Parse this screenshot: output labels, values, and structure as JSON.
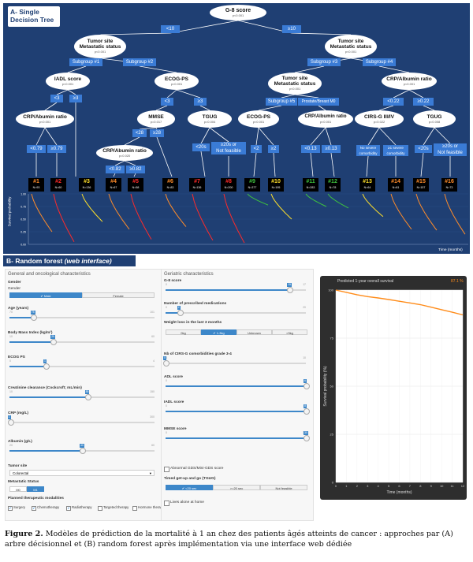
{
  "panelA": {
    "title": [
      "A- Single",
      "Decision Tree"
    ],
    "pvalue": "p<0.001",
    "nodes": {
      "root": "G-8 score",
      "tumor_l": [
        "Tumor site",
        "Metastatic status"
      ],
      "tumor_r": [
        "Tumor site",
        "Metastatic status"
      ],
      "iadl": "IADL score",
      "ecog_l": "ECOG-PS",
      "tumor_sg3": [
        "Tumor site",
        "Metastatic status"
      ],
      "crp_sg4": "CRP/Albumin ratio",
      "crp1": "CRP/Abumin ratio",
      "mmse": "MMSE",
      "tgug_l": "TGUG",
      "ecog_sg5": "ECOG-PS",
      "crp_pm": "CRP/Albumin ratio",
      "cirsg": "CIRS-G III/IV",
      "tgug_r": "TGUG",
      "crp2": "CRP/Abumin ratio"
    },
    "pvals": {
      "tumor_l": "p<0.001",
      "tumor_r": "p<0.001",
      "iadl": "p<0.001",
      "ecog_l": "p<0.001",
      "tumor_sg3": "p<0.001",
      "crp_sg4": "p<0.001",
      "crp1": "p<0.001",
      "mmse": "p=0.017",
      "tgug_l": "p=0.004",
      "ecog_sg5": "p<0.001",
      "crp_pm": "p<0.001",
      "cirsg": "p=0.022",
      "tgug_r": "p=0.008",
      "crp2": "p=0.020"
    },
    "edges": {
      "lt10": "<10",
      "ge10": "≥10",
      "sg1": "Subgroup #1",
      "sg2": "Subgroup #2",
      "sg3": "Subgroup #3",
      "sg4": "Subgroup #4",
      "lt3a": "<3",
      "ge3a": "≥3",
      "lt3b": "<3",
      "ge3b": "≥3",
      "sg5": "Subgroup #5",
      "pm": "Prostate/Breast M0",
      "lt022": "<0.22",
      "ge022": "≥0.22",
      "lt079": "<0.79",
      "ge079": "≥0.79",
      "lt28": "<28",
      "ge28": "≥28",
      "lt20a": "<20s",
      "ge20a": [
        "≥20s or",
        "Not feasible"
      ],
      "lt2": "<2",
      "ge2": "≥2",
      "lt013": "<0.13",
      "ge013": "≥0.13",
      "nosev": [
        "No severe",
        "comorbidity"
      ],
      "sev": [
        "≥1 severe",
        "comorbidity"
      ],
      "lt20b": "<20s",
      "ge20b": [
        "≥20s or",
        "Not feasible"
      ],
      "lt082": "<0.82",
      "ge082": "≥0.82"
    },
    "leaves": [
      {
        "id": "#1",
        "n": "N=93",
        "color": "#ff8c2a"
      },
      {
        "id": "#2",
        "n": "N=60",
        "color": "#ff2a2a"
      },
      {
        "id": "#3",
        "n": "N=136",
        "color": "#ffe02a"
      },
      {
        "id": "#4",
        "n": "N=67",
        "color": "#ff8c2a"
      },
      {
        "id": "#5",
        "n": "N=58",
        "color": "#ff2a2a"
      },
      {
        "id": "#6",
        "n": "N=83",
        "color": "#ff8c2a"
      },
      {
        "id": "#7",
        "n": "N=136",
        "color": "#ff2a2a"
      },
      {
        "id": "#8",
        "n": "N=200",
        "color": "#ff2a2a"
      },
      {
        "id": "#9",
        "n": "N=377",
        "color": "#3ec23e"
      },
      {
        "id": "#10",
        "n": "N=195",
        "color": "#ffe02a"
      },
      {
        "id": "#11",
        "n": "N=283",
        "color": "#3ec23e"
      },
      {
        "id": "#12",
        "n": "N=78",
        "color": "#3ec23e"
      },
      {
        "id": "#13",
        "n": "N=64",
        "color": "#ffe02a"
      },
      {
        "id": "#14",
        "n": "N=81",
        "color": "#ff8c2a"
      },
      {
        "id": "#15",
        "n": "N=157",
        "color": "#ff8c2a"
      },
      {
        "id": "#16",
        "n": "N=73",
        "color": "#ff8c2a"
      }
    ],
    "ylabel": "Survival probability",
    "yticks": [
      "1.00",
      "0.75",
      "0.50",
      "0.25",
      "0.00"
    ],
    "xlabel": "Time (months)"
  },
  "panelB": {
    "title_main": "B- Random forest",
    "title_sub": "(web interface)",
    "left_header": "General and oncological characteristics",
    "right_header": "Geriatric characteristics",
    "gender_label": "Gender",
    "gender_sub": "Gender",
    "gender_male": "✔ Male",
    "gender_female": "Female",
    "age_label": "Age (years)",
    "age_min": "70",
    "age_val": "75",
    "age_max": "101",
    "bmi_label": "Body Mass Index (kg/m²)",
    "bmi_min": "10",
    "bmi_val": "25",
    "bmi_max": "60",
    "ecog_label": "ECOG PS",
    "ecog_min": "0",
    "ecog_val": "1",
    "ecog_max": "4",
    "creat_label": "Creatinine clearance (Cockcroft; mL/min)",
    "creat_min": "10",
    "creat_val": "85",
    "creat_max": "150",
    "crp_label": "CRP (mg/L)",
    "crp_min": "0",
    "crp_val": "1",
    "crp_max": "300",
    "alb_label": "Albumin (g/L)",
    "alb_min": "20",
    "alb_val": "40",
    "alb_max": "60",
    "tumor_label": "Tumor site",
    "tumor_value": "Colorectal",
    "meta_label": "Metastatic Status",
    "meta_m0": "M0",
    "meta_m1": "M1",
    "planned_label": "Planned therapeutic modalities",
    "modalities": [
      "Surgery",
      "Chemotherapy",
      "Radiotherapy",
      "Targeted therapy",
      "Hormone therapy"
    ],
    "g8_label": "G-8 score",
    "g8_min": "0",
    "g8_val": "15",
    "g8_max": "17",
    "meds_label": "Number of prescribed medications",
    "meds_min": "0",
    "meds_val": "2",
    "meds_max": "20",
    "wl_label": "Weight loss in the last 3 months",
    "wl_opts": [
      "0kg",
      "✔ 1-3kg",
      "Unknown",
      ">3kg"
    ],
    "cirs_label": "Nb of CIRS-G comorbidities grade 3-4",
    "cirs_min": "0",
    "cirs_val": "0",
    "cirs_max": "10",
    "adl_label": "ADL score",
    "adl_min": "0",
    "adl_val": "6",
    "adl_max": "6",
    "iadl_label": "IADL score",
    "iadl_min": "0",
    "iadl_val": "8",
    "iadl_max": "8",
    "mmse_label": "MMSE score",
    "mmse_min": "0",
    "mmse_val": "30",
    "mmse_max": "30",
    "gds_label": "Abnormal GDS/Mini-GDS score",
    "tgug_label": "Timed get-up and go (TGUG)",
    "tgug_opts": [
      "✔ <20 sec",
      ">=20 sec",
      "Not feasible"
    ],
    "lives_label": "Lives alone at home",
    "chart_title": "Predicted 1-year overall survival",
    "chart_value": "87.1 %"
  },
  "chart_data": {
    "type": "line",
    "title": "Predicted 1-year overall survival",
    "xlabel": "Time (months)",
    "ylabel": "Survival probability (%)",
    "xlim": [
      0,
      12
    ],
    "ylim": [
      0,
      100
    ],
    "x": [
      0,
      1,
      2,
      3,
      4,
      5,
      6,
      7,
      8,
      9,
      10,
      11,
      12
    ],
    "values": [
      100,
      98.8,
      97.6,
      96.6,
      95.9,
      95.1,
      94.2,
      93.3,
      92.4,
      91.1,
      89.8,
      88.5,
      87.1
    ],
    "color": "#ff8c1a"
  },
  "caption": {
    "label": "Figure 2.",
    "text": " Modèles de prédiction de la mortalité à 1 an chez des patients âgés atteints de cancer : approches par (A) arbre décisionnel et (B) random forest après implémentation via une interface web dédiée"
  }
}
